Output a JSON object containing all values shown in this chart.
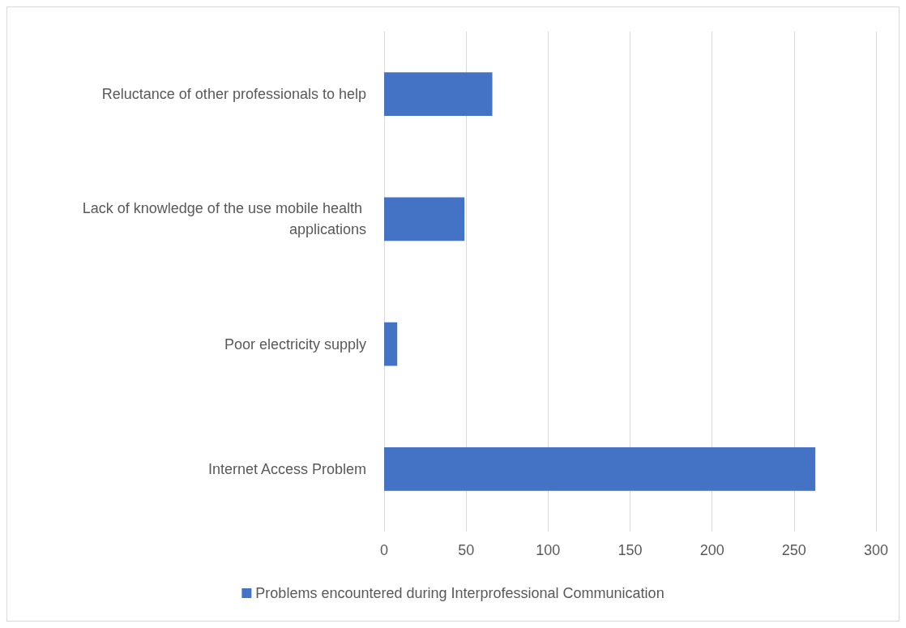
{
  "chart_data": {
    "type": "bar",
    "orientation": "horizontal",
    "categories": [
      "Reluctance of other professionals to help",
      "Lack of knowledge of the use mobile health applications",
      "Poor electricity supply",
      "Internet Access Problem"
    ],
    "series": [
      {
        "name": "Problems encountered during Interprofessional Communication",
        "color": "#4472c4",
        "values": [
          66,
          49,
          8,
          263
        ]
      }
    ],
    "xlim": [
      0,
      300
    ],
    "xticks": [
      0,
      50,
      100,
      150,
      200,
      250,
      300
    ],
    "grid": "x",
    "legend": "bottom"
  }
}
